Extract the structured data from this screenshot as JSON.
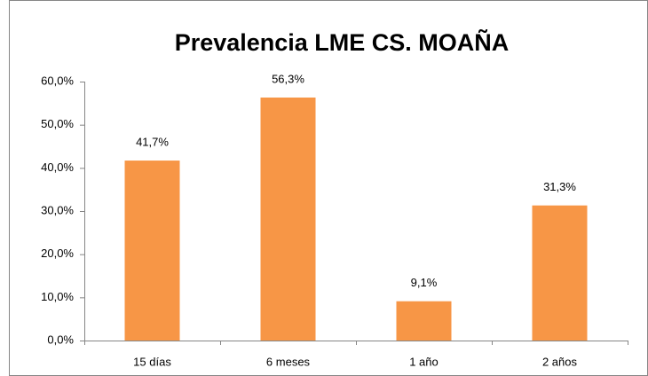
{
  "chart_data": {
    "type": "bar",
    "title": "Prevalencia LME CS. MOAÑA",
    "categories": [
      "15 días",
      "6 meses",
      "1 año",
      "2 años"
    ],
    "values": [
      41.7,
      56.3,
      9.1,
      31.3
    ],
    "value_labels": [
      "41,7%",
      "56,3%",
      "9,1%",
      "31,3%"
    ],
    "color": "#f79646",
    "ylim": [
      0,
      60
    ],
    "yticks": [
      {
        "value": 0,
        "label": "0,0%"
      },
      {
        "value": 10,
        "label": "10,0%"
      },
      {
        "value": 20,
        "label": "20,0%"
      },
      {
        "value": 30,
        "label": "30,0%"
      },
      {
        "value": 40,
        "label": "40,0%"
      },
      {
        "value": 50,
        "label": "50,0%"
      },
      {
        "value": 60,
        "label": "60,0%"
      }
    ],
    "grid": false
  }
}
